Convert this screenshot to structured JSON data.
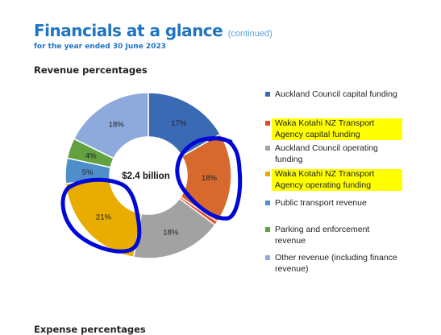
{
  "header": {
    "title": "Financials at a glance",
    "title_suffix": "(continued)",
    "subtitle": "for the year ended 30 June 2023",
    "section": "Revenue percentages",
    "next_section": "Expense percentages"
  },
  "chart_data": {
    "type": "pie",
    "variant": "donut",
    "center_label": "$2.4 billion",
    "slices": [
      {
        "label": "Auckland Council capital funding",
        "value": 17,
        "value_label": "17%",
        "color": "#3a6ab3",
        "highlighted": false,
        "circled": false
      },
      {
        "label": "Waka Kotahi NZ Transport Agency capital funding",
        "value": 0.8,
        "value_label": "",
        "color": "#e34a2a",
        "highlighted": true,
        "circled": false
      },
      {
        "label": "Auckland Council operating funding",
        "value": 18,
        "value_label": "18%",
        "color": "#a2a2a2",
        "highlighted": false,
        "circled": false
      },
      {
        "label": "Waka Kotahi NZ Transport Agency operating funding",
        "value": 21,
        "value_label": "21%",
        "color": "#e8ad00",
        "highlighted": true,
        "circled": true
      },
      {
        "label": "Public transport revenue",
        "value": 5,
        "value_label": "5%",
        "color": "#4e8ecb",
        "highlighted": false,
        "circled": false
      },
      {
        "label": "Parking and enforcement revenue",
        "value": 4,
        "value_label": "4%",
        "color": "#62a040",
        "highlighted": false,
        "circled": false
      },
      {
        "label": "Other revenue (including finance revenue)",
        "value": 18,
        "value_label": "18%",
        "color": "#8ea9dc",
        "highlighted": false,
        "circled": false
      }
    ],
    "chart_order": [
      0,
      7,
      1,
      2,
      3,
      4,
      5,
      6
    ],
    "extra_slices": [
      {
        "label": "",
        "value": 18,
        "value_label": "18%",
        "color": "#d7692e",
        "circled": true
      }
    ],
    "annotation_color": "#0008d6",
    "highlight_color": "#ffff00"
  }
}
